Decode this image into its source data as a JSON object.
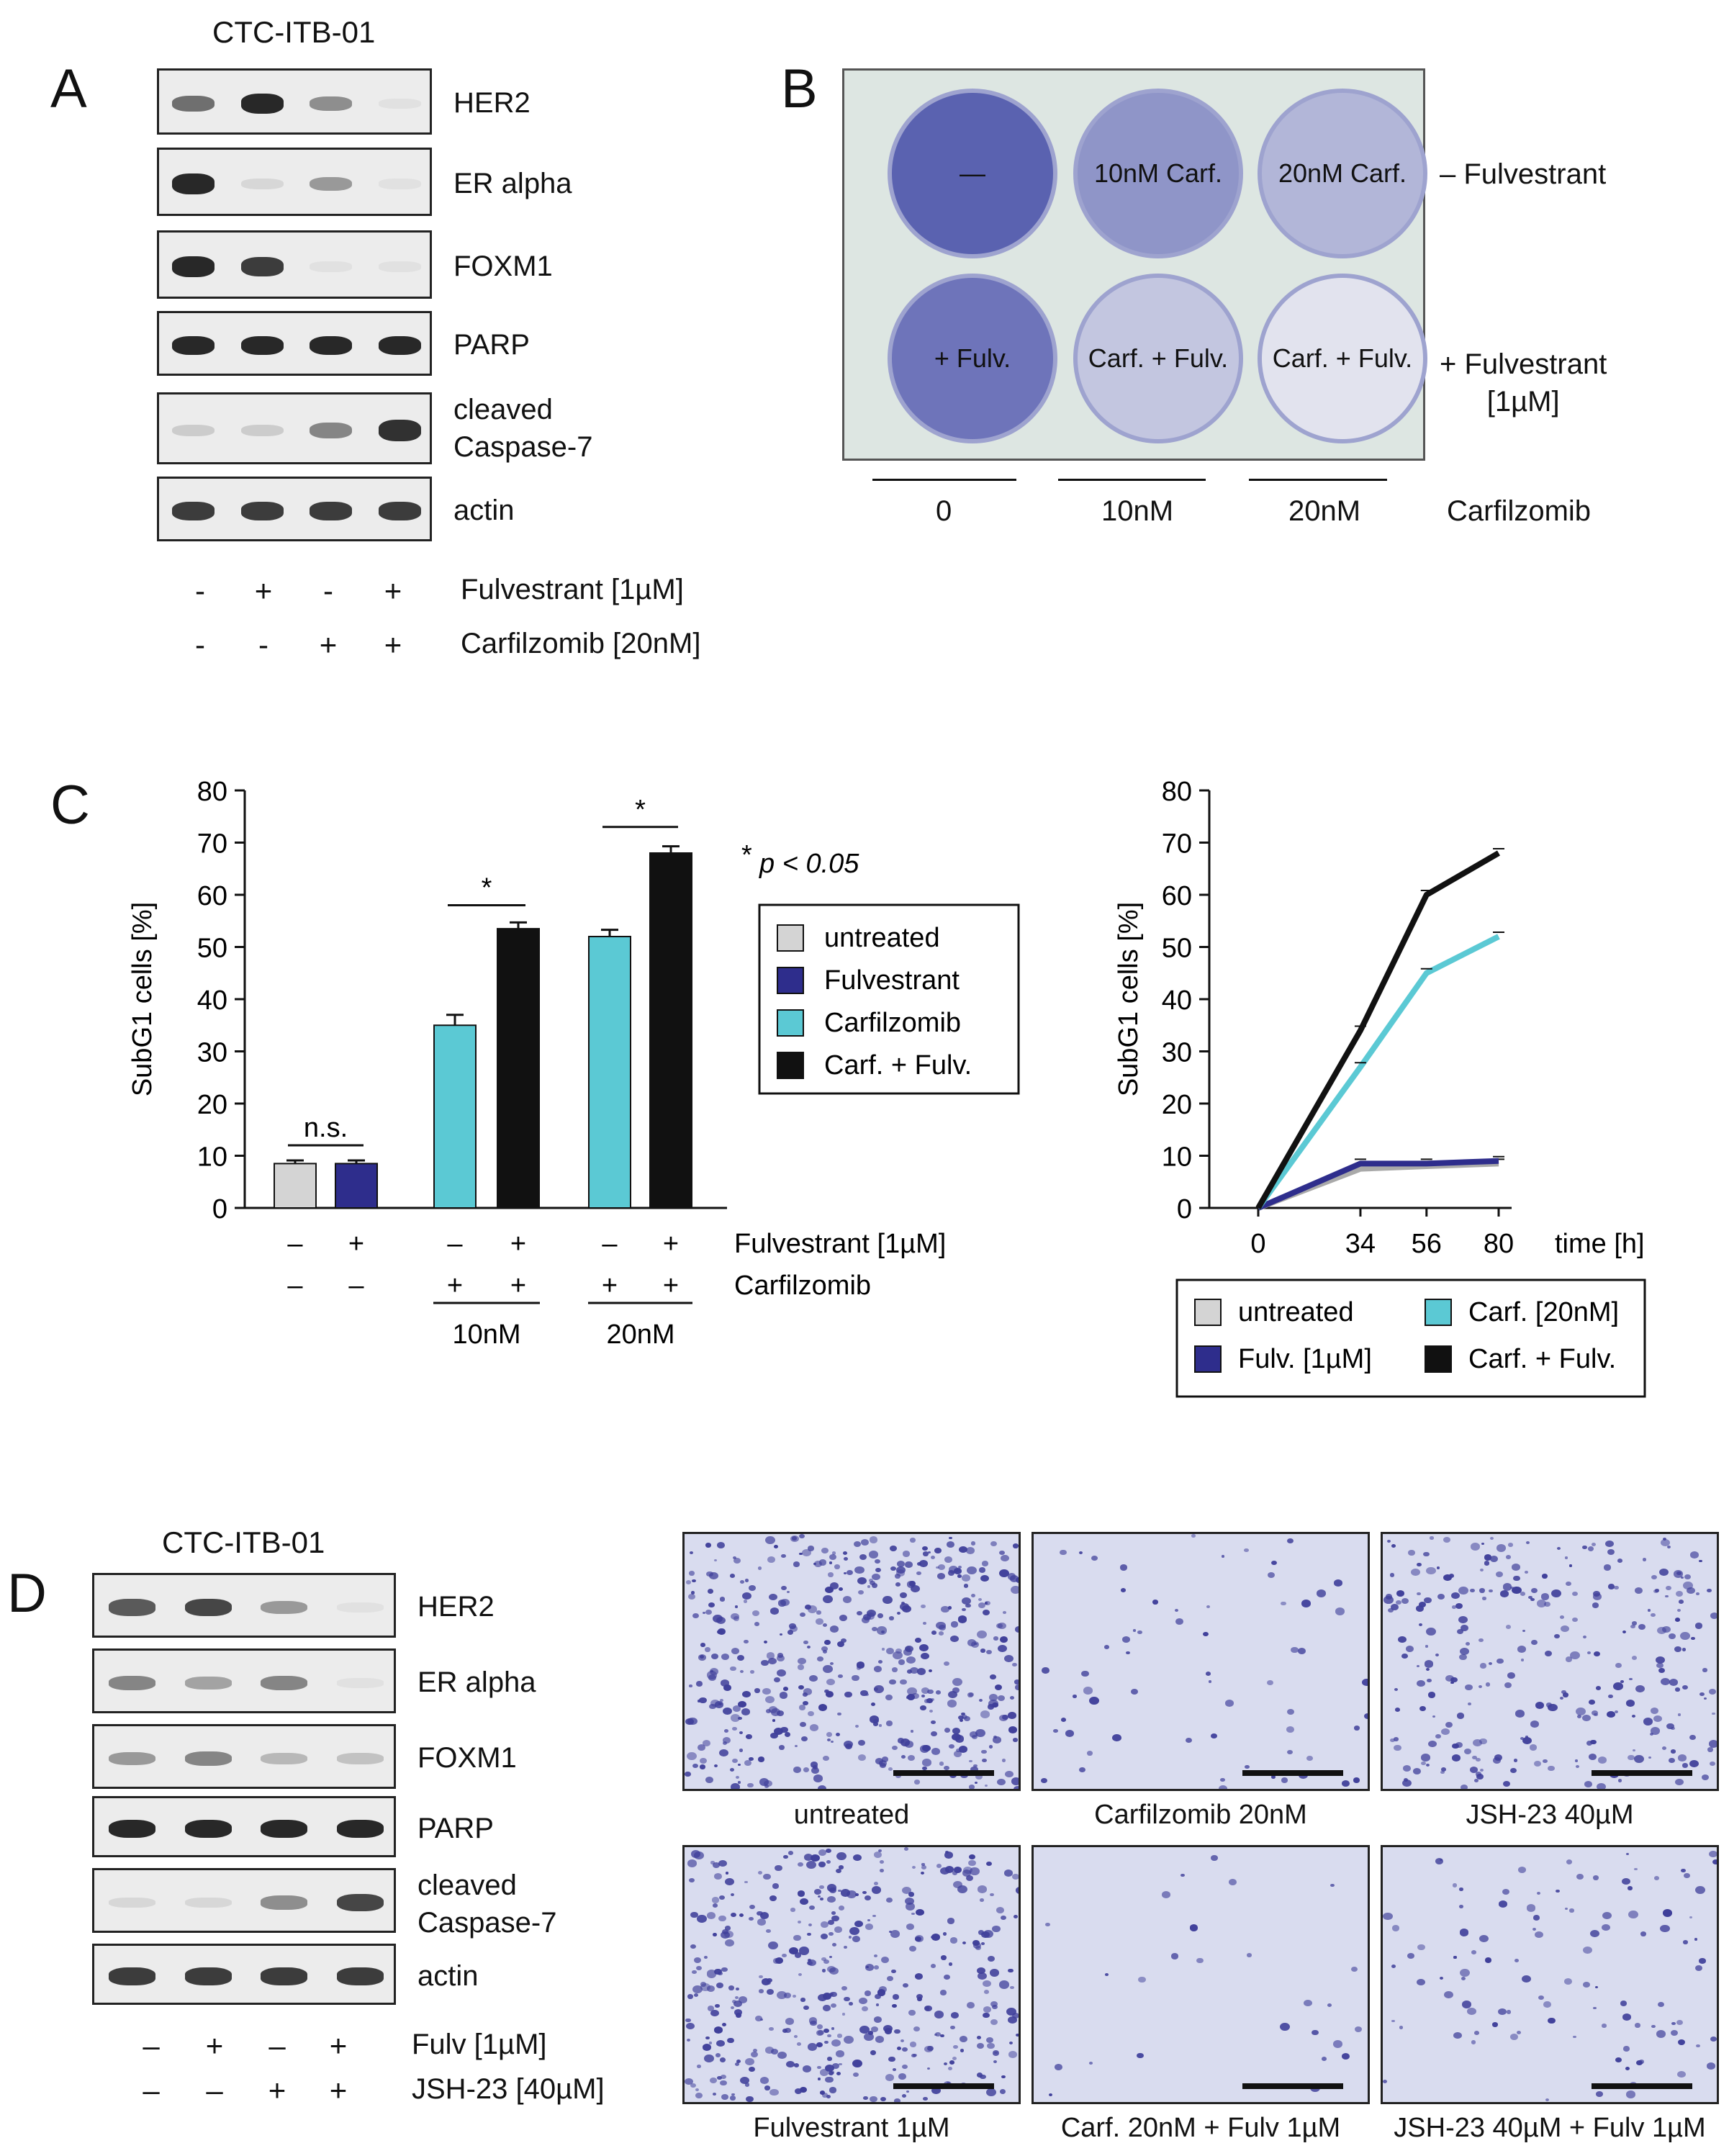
{
  "panelA": {
    "letter": "A",
    "cell_line": "CTC-ITB-01",
    "blots": [
      {
        "label": "HER2",
        "bands": [
          0.6,
          0.95,
          0.45,
          0.05
        ]
      },
      {
        "label": "ER alpha",
        "bands": [
          0.95,
          0.1,
          0.4,
          0.05
        ]
      },
      {
        "label": "FOXM1",
        "bands": [
          0.95,
          0.85,
          0.05,
          0.05
        ]
      },
      {
        "label": "PARP",
        "bands": [
          0.95,
          0.95,
          0.95,
          0.95
        ]
      },
      {
        "label": "cleaved\nCaspase-7",
        "bands": [
          0.15,
          0.15,
          0.5,
          0.9
        ]
      },
      {
        "label": "actin",
        "bands": [
          0.85,
          0.85,
          0.85,
          0.85
        ]
      }
    ],
    "treatment_rows": [
      {
        "label": "Fulvestrant [1µM]",
        "signs": [
          "-",
          "+",
          "-",
          "+"
        ]
      },
      {
        "label": "Carfilzomib [20nM]",
        "signs": [
          "-",
          "-",
          "+",
          "+"
        ]
      }
    ]
  },
  "panelB": {
    "letter": "B",
    "wells_top": [
      "—",
      "10nM Carf.",
      "20nM Carf."
    ],
    "wells_bottom": [
      "+ Fulv.",
      "Carf. + Fulv.",
      "Carf. + Fulv."
    ],
    "row_top_label": "– Fulvestrant",
    "row_bottom_label": "+ Fulvestrant\n[1µM]",
    "col_labels": [
      "0",
      "10nM",
      "20nM"
    ],
    "axis_label": "Carfilzomib",
    "well_colors_top": [
      "#5a62b0",
      "#8f95c8",
      "#b2b6d8"
    ],
    "well_colors_bottom": [
      "#6e74ba",
      "#c3c6e0",
      "#e2e3ee"
    ]
  },
  "panelC": {
    "letter": "C",
    "pvalue_note": "p < 0.05",
    "star": "*"
  },
  "chart_data": [
    {
      "type": "bar",
      "ylabel": "SubG1 cells [%]",
      "ylim": [
        0,
        80
      ],
      "yticks": [
        0,
        10,
        20,
        30,
        40,
        50,
        60,
        70,
        80
      ],
      "bars": [
        {
          "series": "untreated",
          "value": 8.5,
          "err": 0.6
        },
        {
          "series": "Fulvestrant",
          "value": 8.5,
          "err": 0.6
        },
        {
          "series": "Carfilzomib",
          "value": 35,
          "err": 2
        },
        {
          "series": "Carf. + Fulv.",
          "value": 53.5,
          "err": 1.2
        },
        {
          "series": "Carfilzomib",
          "value": 52,
          "err": 1.3
        },
        {
          "series": "Carf. + Fulv.",
          "value": 68,
          "err": 1.3
        }
      ],
      "series_colors": {
        "untreated": "#d4d4d4",
        "Fulvestrant": "#2e2d8c",
        "Carfilzomib": "#5bc9d4",
        "Carf. + Fulv.": "#111111"
      },
      "legend": [
        "untreated",
        "Fulvestrant",
        "Carfilzomib",
        "Carf. + Fulv."
      ],
      "significance": [
        {
          "label": "n.s."
        },
        {
          "label": "*"
        },
        {
          "label": "*"
        }
      ],
      "fulvestrant_row": {
        "label": "Fulvestrant [1µM]",
        "signs": [
          "–",
          "+",
          "–",
          "+",
          "–",
          "+"
        ]
      },
      "carfilzomib_row": {
        "label": "Carfilzomib",
        "signs": [
          "–",
          "–",
          "+",
          "+",
          "+",
          "+"
        ]
      },
      "dose_labels": [
        "10nM",
        "20nM"
      ]
    },
    {
      "type": "line",
      "ylabel": "SubG1 cells [%]",
      "xlabel": "time [h]",
      "ylim": [
        0,
        80
      ],
      "yticks": [
        0,
        10,
        20,
        30,
        40,
        50,
        60,
        70,
        80
      ],
      "x": [
        0,
        34,
        56,
        80
      ],
      "series": [
        {
          "name": "untreated",
          "color": "#a9a9a9",
          "values": [
            0,
            7.5,
            8,
            8.5
          ]
        },
        {
          "name": "Fulv. [1µM]",
          "color": "#2e2d8c",
          "values": [
            0,
            8.5,
            8.5,
            9
          ]
        },
        {
          "name": "Carf. [20nM]",
          "color": "#5bc9d4",
          "values": [
            0,
            27,
            45,
            52
          ]
        },
        {
          "name": "Carf. + Fulv.",
          "color": "#111111",
          "values": [
            0,
            34,
            60,
            68
          ]
        }
      ],
      "legend_order": [
        "untreated",
        "Carf. [20nM]",
        "Fulv. [1µM]",
        "Carf. + Fulv."
      ]
    }
  ],
  "panelD": {
    "letter": "D",
    "cell_line": "CTC-ITB-01",
    "blots": [
      {
        "label": "HER2",
        "bands": [
          0.7,
          0.8,
          0.4,
          0.05
        ]
      },
      {
        "label": "ER alpha",
        "bands": [
          0.5,
          0.35,
          0.5,
          0.05
        ]
      },
      {
        "label": "FOXM1",
        "bands": [
          0.4,
          0.5,
          0.25,
          0.2
        ]
      },
      {
        "label": "PARP",
        "bands": [
          0.95,
          0.95,
          0.95,
          0.95
        ]
      },
      {
        "label": "cleaved\nCaspase-7",
        "bands": [
          0.1,
          0.1,
          0.45,
          0.8
        ]
      },
      {
        "label": "actin",
        "bands": [
          0.85,
          0.85,
          0.85,
          0.85
        ]
      }
    ],
    "treatment_rows": [
      {
        "label": "Fulv [1µM]",
        "signs": [
          "–",
          "+",
          "–",
          "+"
        ]
      },
      {
        "label": "JSH-23 [40µM]",
        "signs": [
          "–",
          "–",
          "+",
          "+"
        ]
      }
    ],
    "micrographs": [
      {
        "caption": "untreated",
        "density": 0.9
      },
      {
        "caption": "Carfilzomib 20nM",
        "density": 0.12
      },
      {
        "caption": "JSH-23 40µM",
        "density": 0.55
      },
      {
        "caption": "Fulvestrant 1µM",
        "density": 0.8
      },
      {
        "caption": "Carf. 20nM + Fulv 1µM",
        "density": 0.05
      },
      {
        "caption": "JSH-23 40µM + Fulv 1µM",
        "density": 0.2
      }
    ]
  }
}
